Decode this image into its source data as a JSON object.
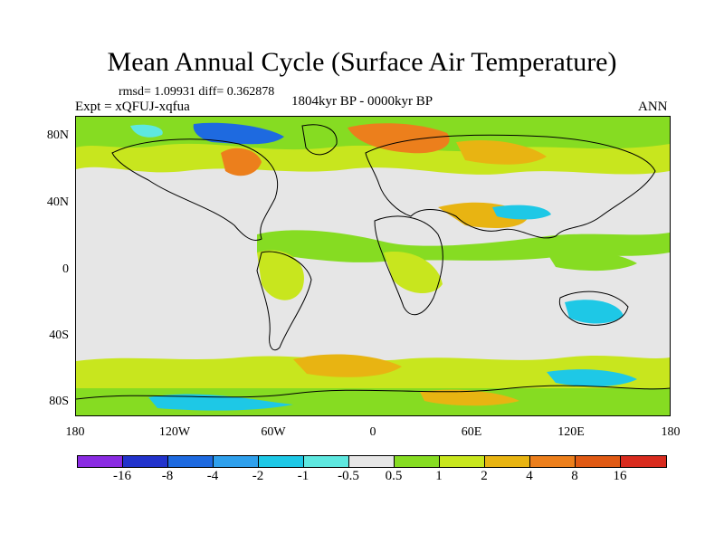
{
  "title": "Mean Annual Cycle (Surface Air Temperature)",
  "stats": "rmsd= 1.09931 diff= 0.362878",
  "experiment": "Expt = xQFUJ-xqfua",
  "period": "1804kyr BP - 0000kyr BP",
  "season": "ANN",
  "y_ticks": [
    "80N",
    "40N",
    "0",
    "40S",
    "80S"
  ],
  "x_ticks": [
    "180",
    "120W",
    "60W",
    "0",
    "60E",
    "120E",
    "180"
  ],
  "colorbar": {
    "labels": [
      "-16",
      "-8",
      "-4",
      "-2",
      "-1",
      "-0.5",
      "0.5",
      "1",
      "2",
      "4",
      "8",
      "16"
    ],
    "colors": [
      "#8a2be2",
      "#2233cc",
      "#1e6ae0",
      "#2fa0ec",
      "#1ec8e6",
      "#5ee8e0",
      "#e6e6e6",
      "#86dc22",
      "#c8e61e",
      "#e8b412",
      "#ec7f1c",
      "#e05a14",
      "#d82b1e"
    ]
  }
}
